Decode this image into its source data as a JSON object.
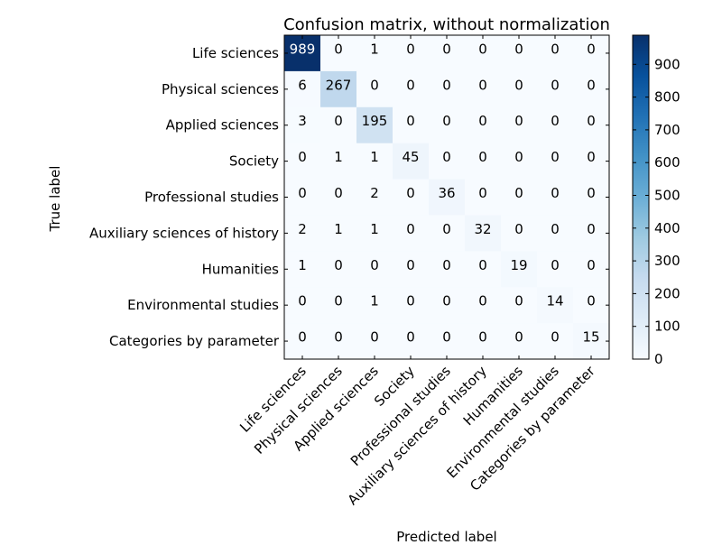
{
  "chart_data": {
    "type": "heatmap",
    "title": "Confusion matrix, without normalization",
    "xlabel": "Predicted label",
    "ylabel": "True label",
    "labels": [
      "Life sciences",
      "Physical sciences",
      "Applied sciences",
      "Society",
      "Professional studies",
      "Auxiliary sciences of history",
      "Humanities",
      "Environmental studies",
      "Categories by parameter"
    ],
    "values": [
      [
        989,
        0,
        1,
        0,
        0,
        0,
        0,
        0,
        0
      ],
      [
        6,
        267,
        0,
        0,
        0,
        0,
        0,
        0,
        0
      ],
      [
        3,
        0,
        195,
        0,
        0,
        0,
        0,
        0,
        0
      ],
      [
        0,
        1,
        1,
        45,
        0,
        0,
        0,
        0,
        0
      ],
      [
        0,
        0,
        2,
        0,
        36,
        0,
        0,
        0,
        0
      ],
      [
        2,
        1,
        1,
        0,
        0,
        32,
        0,
        0,
        0
      ],
      [
        1,
        0,
        0,
        0,
        0,
        0,
        19,
        0,
        0
      ],
      [
        0,
        0,
        1,
        0,
        0,
        0,
        0,
        14,
        0
      ],
      [
        0,
        0,
        0,
        0,
        0,
        0,
        0,
        0,
        15
      ]
    ],
    "colormap": "Blues",
    "colorbar": {
      "range": [
        0,
        989
      ],
      "ticks": [
        0,
        100,
        200,
        300,
        400,
        500,
        600,
        700,
        800,
        900
      ]
    },
    "grid": false
  }
}
